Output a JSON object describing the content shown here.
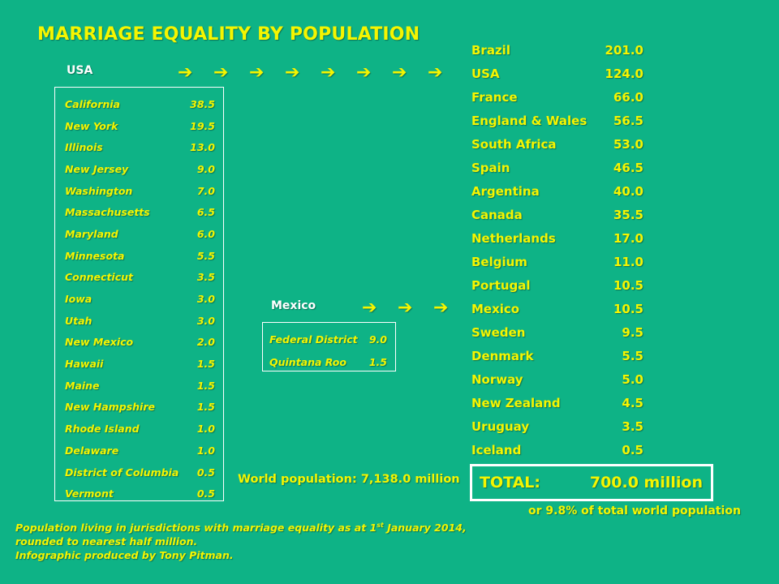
{
  "title": "MARRIAGE EQUALITY BY POPULATION",
  "usa": {
    "heading": "USA",
    "arrow_glyph": "➔",
    "arrow_count": 8,
    "states": [
      {
        "name": "California",
        "value": "38.5"
      },
      {
        "name": "New York",
        "value": "19.5"
      },
      {
        "name": "Illinois",
        "value": "13.0"
      },
      {
        "name": "New Jersey",
        "value": "9.0"
      },
      {
        "name": "Washington",
        "value": "7.0"
      },
      {
        "name": "Massachusetts",
        "value": "6.5"
      },
      {
        "name": "Maryland",
        "value": "6.0"
      },
      {
        "name": "Minnesota",
        "value": "5.5"
      },
      {
        "name": "Connecticut",
        "value": "3.5"
      },
      {
        "name": "Iowa",
        "value": "3.0"
      },
      {
        "name": "Utah",
        "value": "3.0"
      },
      {
        "name": "New Mexico",
        "value": "2.0"
      },
      {
        "name": "Hawaii",
        "value": "1.5"
      },
      {
        "name": "Maine",
        "value": "1.5"
      },
      {
        "name": "New Hampshire",
        "value": "1.5"
      },
      {
        "name": "Rhode Island",
        "value": "1.0"
      },
      {
        "name": "Delaware",
        "value": "1.0"
      },
      {
        "name": "District of Columbia",
        "value": "0.5"
      },
      {
        "name": "Vermont",
        "value": "0.5"
      }
    ]
  },
  "mexico": {
    "heading": "Mexico",
    "arrow_count": 3,
    "states": [
      {
        "name": "Federal District",
        "value": "9.0"
      },
      {
        "name": "Quintana Roo",
        "value": "1.5"
      }
    ]
  },
  "countries": [
    {
      "name": "Brazil",
      "value": "201.0"
    },
    {
      "name": "USA",
      "value": "124.0"
    },
    {
      "name": "France",
      "value": "66.0"
    },
    {
      "name": "England & Wales",
      "value": "56.5"
    },
    {
      "name": "South Africa",
      "value": "53.0"
    },
    {
      "name": "Spain",
      "value": "46.5"
    },
    {
      "name": "Argentina",
      "value": "40.0"
    },
    {
      "name": "Canada",
      "value": "35.5"
    },
    {
      "name": "Netherlands",
      "value": "17.0"
    },
    {
      "name": "Belgium",
      "value": "11.0"
    },
    {
      "name": "Portugal",
      "value": "10.5"
    },
    {
      "name": "Mexico",
      "value": "10.5"
    },
    {
      "name": "Sweden",
      "value": "9.5"
    },
    {
      "name": "Denmark",
      "value": "5.5"
    },
    {
      "name": "Norway",
      "value": "5.0"
    },
    {
      "name": "New Zealand",
      "value": "4.5"
    },
    {
      "name": "Uruguay",
      "value": "3.5"
    },
    {
      "name": "Iceland",
      "value": "0.5"
    }
  ],
  "world_population": "World population: 7,138.0 million",
  "total": {
    "label": "TOTAL:",
    "value": "700.0 million",
    "percent_note": "or 9.8% of total world population"
  },
  "footnote": {
    "line1_before": "Population living in jurisdictions with marriage equality as at 1",
    "line1_sup": "st",
    "line1_after": " January 2014,",
    "line2": "rounded to nearest half million.",
    "line3": "Infographic produced by Tony Pitman."
  },
  "colors": {
    "background": "#0eb386",
    "heading_yellow": "#f5f500",
    "text_white": "#ffffff"
  }
}
